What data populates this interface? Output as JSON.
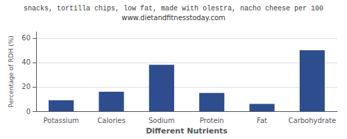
{
  "chart_data": {
    "type": "bar",
    "title": "snacks, tortilla chips, low fat, made with olestra, nacho cheese per 100",
    "subtitle": "www.dietandfitnesstoday.com",
    "xlabel": "Different Nutrients",
    "ylabel": "Percentage of RDH (%)",
    "categories": [
      "Potassium",
      "Calories",
      "Sodium",
      "Protein",
      "Fat",
      "Carbohydrate"
    ],
    "values": [
      9,
      16,
      38,
      15,
      6,
      50
    ],
    "color": "#2e4d8e",
    "ylim": [
      0,
      65
    ],
    "yticks": [
      0,
      20,
      40,
      60
    ],
    "grid": true
  }
}
